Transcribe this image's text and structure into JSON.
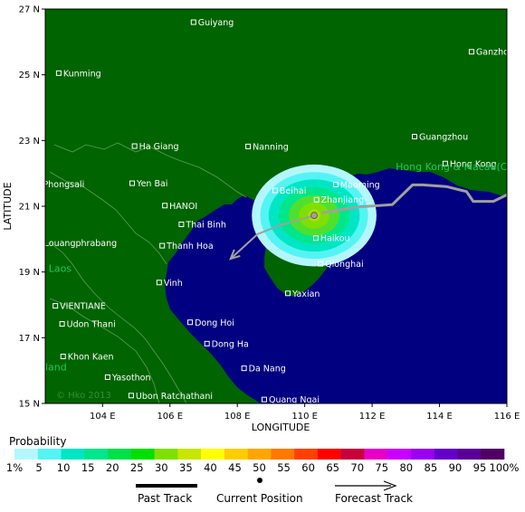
{
  "axes": {
    "xlabel": "LONGITUDE",
    "ylabel": "LATITUDE",
    "x_ticks": [
      {
        "value": 104,
        "label": "104 E"
      },
      {
        "value": 106,
        "label": "106 E"
      },
      {
        "value": 108,
        "label": "108 E"
      },
      {
        "value": 110,
        "label": "110 E"
      },
      {
        "value": 112,
        "label": "112 E"
      },
      {
        "value": 114,
        "label": "114 E"
      },
      {
        "value": 116,
        "label": "116 E"
      }
    ],
    "y_ticks": [
      {
        "value": 15,
        "label": "15 N"
      },
      {
        "value": 17,
        "label": "17 N"
      },
      {
        "value": 19,
        "label": "19 N"
      },
      {
        "value": 21,
        "label": "21 N"
      },
      {
        "value": 23,
        "label": "23 N"
      },
      {
        "value": 25,
        "label": "25 N"
      },
      {
        "value": 27,
        "label": "27 N"
      }
    ],
    "lon_range": [
      102.3,
      116.0
    ],
    "lat_range": [
      15.0,
      27.0
    ]
  },
  "colors": {
    "land": "#006400",
    "sea": "#000080",
    "border": "#5a9e5a",
    "past_track": "#a0a0a0",
    "forecast_track": "#a0a0a0",
    "city_label": "#ffffff",
    "country_label": "#22c55e"
  },
  "cities": [
    {
      "name": "Guiyang",
      "lon": 106.7,
      "lat": 26.6
    },
    {
      "name": "Kunming",
      "lon": 102.7,
      "lat": 25.05
    },
    {
      "name": "Ganzhou",
      "lon": 114.95,
      "lat": 25.7
    },
    {
      "name": "Ha Giang",
      "lon": 104.95,
      "lat": 22.83
    },
    {
      "name": "Nanning",
      "lon": 108.32,
      "lat": 22.82
    },
    {
      "name": "Guangzhou",
      "lon": 113.26,
      "lat": 23.12
    },
    {
      "name": "Hong Kong",
      "lon": 114.17,
      "lat": 22.3
    },
    {
      "name": "Phongsali",
      "lon": 102.1,
      "lat": 21.68
    },
    {
      "name": "Yen Bai",
      "lon": 104.88,
      "lat": 21.7
    },
    {
      "name": "Beihai",
      "lon": 109.12,
      "lat": 21.48
    },
    {
      "name": "Maoming",
      "lon": 110.92,
      "lat": 21.66
    },
    {
      "name": "HANOI",
      "lon": 105.85,
      "lat": 21.02
    },
    {
      "name": "Zhanjiang",
      "lon": 110.35,
      "lat": 21.2
    },
    {
      "name": "Thai Binh",
      "lon": 106.34,
      "lat": 20.45
    },
    {
      "name": "Haikou",
      "lon": 110.33,
      "lat": 20.03
    },
    {
      "name": "Louangphrabang",
      "lon": 102.13,
      "lat": 19.88
    },
    {
      "name": "Thanh Hoa",
      "lon": 105.77,
      "lat": 19.8
    },
    {
      "name": "Qionghai",
      "lon": 110.47,
      "lat": 19.25
    },
    {
      "name": "Vinh",
      "lon": 105.68,
      "lat": 18.68
    },
    {
      "name": "Yaxian",
      "lon": 109.5,
      "lat": 18.35
    },
    {
      "name": "VIENTIANE",
      "lon": 102.6,
      "lat": 17.97
    },
    {
      "name": "Udon Thani",
      "lon": 102.8,
      "lat": 17.42
    },
    {
      "name": "Dong Hoi",
      "lon": 106.6,
      "lat": 17.47
    },
    {
      "name": "Dong Ha",
      "lon": 107.1,
      "lat": 16.82
    },
    {
      "name": "Khon Kaen",
      "lon": 102.83,
      "lat": 16.43
    },
    {
      "name": "Yasothon",
      "lon": 104.15,
      "lat": 15.8
    },
    {
      "name": "Da Nang",
      "lon": 108.2,
      "lat": 16.07
    },
    {
      "name": "Ubon Ratchathani",
      "lon": 104.85,
      "lat": 15.24
    },
    {
      "name": "Quang Ngai",
      "lon": 108.8,
      "lat": 15.12
    }
  ],
  "countries": [
    {
      "name": "Hong Kong & Macau(China)",
      "lon": 112.7,
      "lat": 22.1
    },
    {
      "name": "Laos",
      "lon": 102.4,
      "lat": 19.0
    },
    {
      "name": "land",
      "lon": 102.3,
      "lat": 16.0
    }
  ],
  "track": {
    "past": [
      {
        "lon": 116.0,
        "lat": 21.35
      },
      {
        "lon": 115.6,
        "lat": 21.15
      },
      {
        "lon": 115.0,
        "lat": 21.15
      },
      {
        "lon": 114.8,
        "lat": 21.45
      },
      {
        "lon": 114.2,
        "lat": 21.6
      },
      {
        "lon": 113.5,
        "lat": 21.65
      },
      {
        "lon": 113.2,
        "lat": 21.65
      },
      {
        "lon": 112.6,
        "lat": 21.05
      },
      {
        "lon": 111.6,
        "lat": 20.98
      },
      {
        "lon": 110.5,
        "lat": 20.8
      }
    ],
    "current": {
      "lon": 110.28,
      "lat": 20.72
    },
    "forecast": [
      {
        "lon": 110.28,
        "lat": 20.72
      },
      {
        "lon": 109.2,
        "lat": 20.4
      },
      {
        "lon": 108.6,
        "lat": 20.15
      },
      {
        "lon": 107.8,
        "lat": 19.4
      }
    ]
  },
  "probability": {
    "center": {
      "lon": 110.28,
      "lat": 20.72
    },
    "bands": [
      {
        "pct": 1,
        "rx": 1.85,
        "ry": 1.55,
        "color": "#b3f7fc"
      },
      {
        "pct": 5,
        "rx": 1.6,
        "ry": 1.32,
        "color": "#54f4f4"
      },
      {
        "pct": 10,
        "rx": 1.35,
        "ry": 1.1,
        "color": "#00e6c4"
      },
      {
        "pct": 15,
        "rx": 1.05,
        "ry": 0.86,
        "color": "#00e68a"
      },
      {
        "pct": 20,
        "rx": 0.75,
        "ry": 0.62,
        "color": "#4fe02f"
      },
      {
        "pct": 25,
        "rx": 0.45,
        "ry": 0.4,
        "color": "#7fe000"
      },
      {
        "pct": 30,
        "rx": 0.18,
        "ry": 0.18,
        "color": "#b0e000"
      }
    ]
  },
  "legend": {
    "title": "Probability",
    "colors": [
      "#b3f7fc",
      "#54f4f4",
      "#00e6c4",
      "#00e68a",
      "#00e04a",
      "#00e000",
      "#7fe000",
      "#c8e600",
      "#ffff00",
      "#ffcc00",
      "#ffa500",
      "#ff7800",
      "#ff4000",
      "#ff0000",
      "#c8003c",
      "#e600c8",
      "#c800ff",
      "#9c00f0",
      "#6400c8",
      "#5a0096",
      "#500064"
    ],
    "labels": [
      "1%",
      "5",
      "10",
      "15",
      "20",
      "25",
      "30",
      "35",
      "40",
      "45",
      "50",
      "55",
      "60",
      "65",
      "70",
      "75",
      "80",
      "85",
      "90",
      "95",
      "100%"
    ]
  },
  "key": {
    "past_label": "Past Track",
    "current_label": "Current Position",
    "forecast_label": "Forecast Track"
  },
  "watermark": "© Hko 2013"
}
